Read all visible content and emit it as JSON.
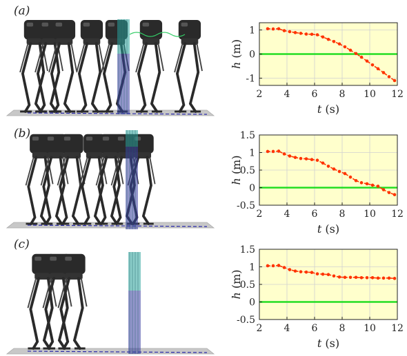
{
  "panels": [
    {
      "label": "(a)"
    },
    {
      "label": "(b)"
    },
    {
      "label": "(c)"
    }
  ],
  "colors": {
    "plot_bg": "#ffffcc",
    "series": "#ff3300",
    "zero_line": "#22dd22",
    "grid": "#d0d0d0",
    "robot": "#2a2a2a",
    "ground": "#c8c8c8",
    "plane_teal": "#2aa39a",
    "plane_blue": "#3a3ea0",
    "path": "#2a2aaa"
  },
  "chart_data": [
    {
      "type": "line",
      "xlabel": "t (s)",
      "ylabel": "h (m)",
      "xlim": [
        2,
        12
      ],
      "ylim": [
        -1.3,
        1.3
      ],
      "xticks": [
        2,
        4,
        6,
        8,
        10,
        12
      ],
      "yticks": [
        -1,
        0,
        1
      ],
      "grid": true,
      "reference_line": 0,
      "x": [
        2.6,
        3.0,
        3.4,
        3.8,
        4.2,
        4.6,
        5.0,
        5.4,
        5.8,
        6.2,
        6.6,
        7.0,
        7.4,
        7.8,
        8.2,
        8.6,
        9.0,
        9.4,
        9.8,
        10.2,
        10.6,
        11.0,
        11.4,
        11.8
      ],
      "values": [
        1.05,
        1.04,
        1.05,
        0.97,
        0.93,
        0.89,
        0.86,
        0.83,
        0.82,
        0.8,
        0.71,
        0.61,
        0.52,
        0.42,
        0.3,
        0.16,
        0.02,
        -0.13,
        -0.29,
        -0.45,
        -0.61,
        -0.77,
        -0.94,
        -1.1
      ]
    },
    {
      "type": "line",
      "xlabel": "t (s)",
      "ylabel": "h (m)",
      "xlim": [
        2,
        12
      ],
      "ylim": [
        -0.5,
        1.5
      ],
      "xticks": [
        2,
        4,
        6,
        8,
        10,
        12
      ],
      "yticks": [
        -0.5,
        0,
        0.5,
        1,
        1.5
      ],
      "grid": true,
      "reference_line": 0,
      "x": [
        2.6,
        3.0,
        3.4,
        3.8,
        4.2,
        4.6,
        5.0,
        5.4,
        5.8,
        6.2,
        6.6,
        7.0,
        7.4,
        7.8,
        8.2,
        8.6,
        9.0,
        9.4,
        9.8,
        10.2,
        10.6,
        11.0,
        11.4,
        11.8
      ],
      "values": [
        1.03,
        1.03,
        1.04,
        0.96,
        0.9,
        0.86,
        0.83,
        0.82,
        0.8,
        0.78,
        0.7,
        0.61,
        0.53,
        0.46,
        0.4,
        0.3,
        0.2,
        0.14,
        0.11,
        0.07,
        0.04,
        -0.06,
        -0.14,
        -0.2
      ]
    },
    {
      "type": "line",
      "xlabel": "t (s)",
      "ylabel": "h (m)",
      "xlim": [
        2,
        12
      ],
      "ylim": [
        -0.5,
        1.5
      ],
      "xticks": [
        2,
        4,
        6,
        8,
        10,
        12
      ],
      "yticks": [
        -0.5,
        0,
        0.5,
        1,
        1.5
      ],
      "grid": true,
      "reference_line": 0,
      "x": [
        2.6,
        3.0,
        3.4,
        3.8,
        4.2,
        4.6,
        5.0,
        5.4,
        5.8,
        6.2,
        6.6,
        7.0,
        7.4,
        7.8,
        8.2,
        8.6,
        9.0,
        9.4,
        9.8,
        10.2,
        10.6,
        11.0,
        11.4,
        11.8
      ],
      "values": [
        1.03,
        1.03,
        1.04,
        0.98,
        0.92,
        0.88,
        0.86,
        0.85,
        0.84,
        0.8,
        0.79,
        0.78,
        0.74,
        0.71,
        0.7,
        0.7,
        0.7,
        0.69,
        0.69,
        0.69,
        0.68,
        0.68,
        0.68,
        0.67
      ]
    }
  ]
}
